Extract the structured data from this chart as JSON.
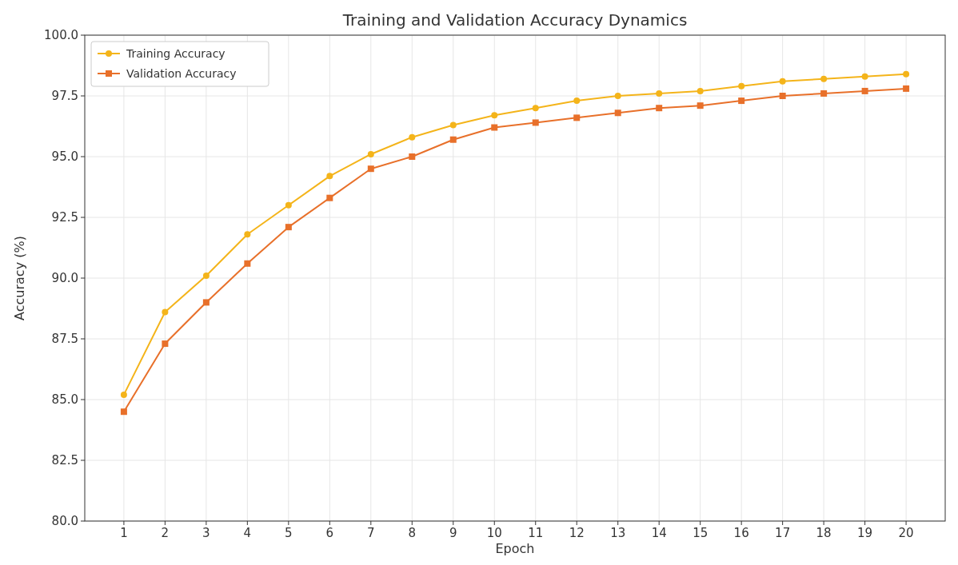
{
  "chart_data": {
    "type": "line",
    "title": "Training and Validation Accuracy Dynamics",
    "xlabel": "Epoch",
    "ylabel": "Accuracy (%)",
    "x": [
      1,
      2,
      3,
      4,
      5,
      6,
      7,
      8,
      9,
      10,
      11,
      12,
      13,
      14,
      15,
      16,
      17,
      18,
      19,
      20
    ],
    "series": [
      {
        "name": "Training Accuracy",
        "color": "#f4b41a",
        "marker": "circle",
        "values": [
          85.2,
          88.6,
          90.1,
          91.8,
          93.0,
          94.2,
          95.1,
          95.8,
          96.3,
          96.7,
          97.0,
          97.3,
          97.5,
          97.6,
          97.7,
          97.9,
          98.1,
          98.2,
          98.3,
          98.4
        ]
      },
      {
        "name": "Validation Accuracy",
        "color": "#e8702a",
        "marker": "square",
        "values": [
          84.5,
          87.3,
          89.0,
          90.6,
          92.1,
          93.3,
          94.5,
          95.0,
          95.7,
          96.2,
          96.4,
          96.6,
          96.8,
          97.0,
          97.1,
          97.3,
          97.5,
          97.6,
          97.7,
          97.8
        ]
      }
    ],
    "xlim": [
      0.05,
      20.95
    ],
    "xticks": [
      1,
      2,
      3,
      4,
      5,
      6,
      7,
      8,
      9,
      10,
      11,
      12,
      13,
      14,
      15,
      16,
      17,
      18,
      19,
      20
    ],
    "ylim": [
      80,
      100
    ],
    "yticks": [
      {
        "value": 80,
        "label": "80.0"
      },
      {
        "value": 82.5,
        "label": "82.5"
      },
      {
        "value": 85,
        "label": "85.0"
      },
      {
        "value": 87.5,
        "label": "87.5"
      },
      {
        "value": 90,
        "label": "90.0"
      },
      {
        "value": 92.5,
        "label": "92.5"
      },
      {
        "value": 95,
        "label": "95.0"
      },
      {
        "value": 97.5,
        "label": "97.5"
      },
      {
        "value": 100,
        "label": "100.0"
      }
    ],
    "grid": true,
    "legend": "top left",
    "line_style": "solid"
  }
}
